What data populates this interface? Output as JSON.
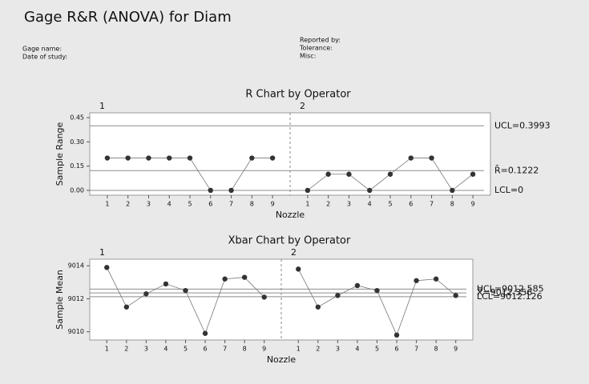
{
  "header": {
    "title": "Gage R&R (ANOVA) for Diam",
    "gage_name": "Gage name:",
    "date_of_study": "Date of study:",
    "reported_by": "Reported by:",
    "tolerance": "Tolerance:",
    "misc": "Misc:"
  },
  "chart_data": [
    {
      "type": "line",
      "title": "R Chart by Operator",
      "x_label": "Nozzle",
      "y_label": "Sample Range",
      "categories": [
        "1",
        "2",
        "3",
        "4",
        "5",
        "6",
        "7",
        "8",
        "9"
      ],
      "series": [
        {
          "name": "1",
          "color": "#333333",
          "values": [
            0.2,
            0.2,
            0.2,
            0.2,
            0.2,
            0,
            0,
            0.2,
            0.2
          ]
        },
        {
          "name": "2",
          "color": "#333333",
          "values": [
            0,
            0.1,
            0.1,
            0,
            0.1,
            0.2,
            0.2,
            0,
            0.1
          ]
        }
      ],
      "reference_lines": [
        {
          "value": 0.3993,
          "label": "UCL=0.3993"
        },
        {
          "value": 0.1222,
          "label": "R̄=0.1222"
        },
        {
          "value": 0,
          "label": "LCL=0"
        }
      ],
      "ylim": [
        -0.03,
        0.48
      ],
      "yticks": [
        {
          "value": 0,
          "label": "0.00"
        },
        {
          "value": 0.15,
          "label": "0.15"
        },
        {
          "value": 0.3,
          "label": "0.30"
        },
        {
          "value": 0.45,
          "label": "0.45"
        }
      ]
    },
    {
      "type": "line",
      "title": "Xbar Chart by Operator",
      "x_label": "Nozzle",
      "y_label": "Sample Mean",
      "categories": [
        "1",
        "2",
        "3",
        "4",
        "5",
        "6",
        "7",
        "8",
        "9"
      ],
      "series": [
        {
          "name": "1",
          "color": "#333333",
          "values": [
            9013.9,
            9011.5,
            9012.3,
            9012.9,
            9012.5,
            9009.9,
            9013.2,
            9013.3,
            9012.1
          ]
        },
        {
          "name": "2",
          "color": "#333333",
          "values": [
            9013.8,
            9011.5,
            9012.2,
            9012.8,
            9012.5,
            9009.8,
            9013.1,
            9013.2,
            9012.2
          ]
        }
      ],
      "reference_lines": [
        {
          "value": 9012.585,
          "label": "UCL=9012.585"
        },
        {
          "value": 9012.356,
          "label": "X̿=9012.356"
        },
        {
          "value": 9012.126,
          "label": "LCL=9012.126"
        }
      ],
      "ylim": [
        9009.5,
        9014.4
      ],
      "yticks": [
        9010,
        9012,
        9014
      ]
    }
  ]
}
